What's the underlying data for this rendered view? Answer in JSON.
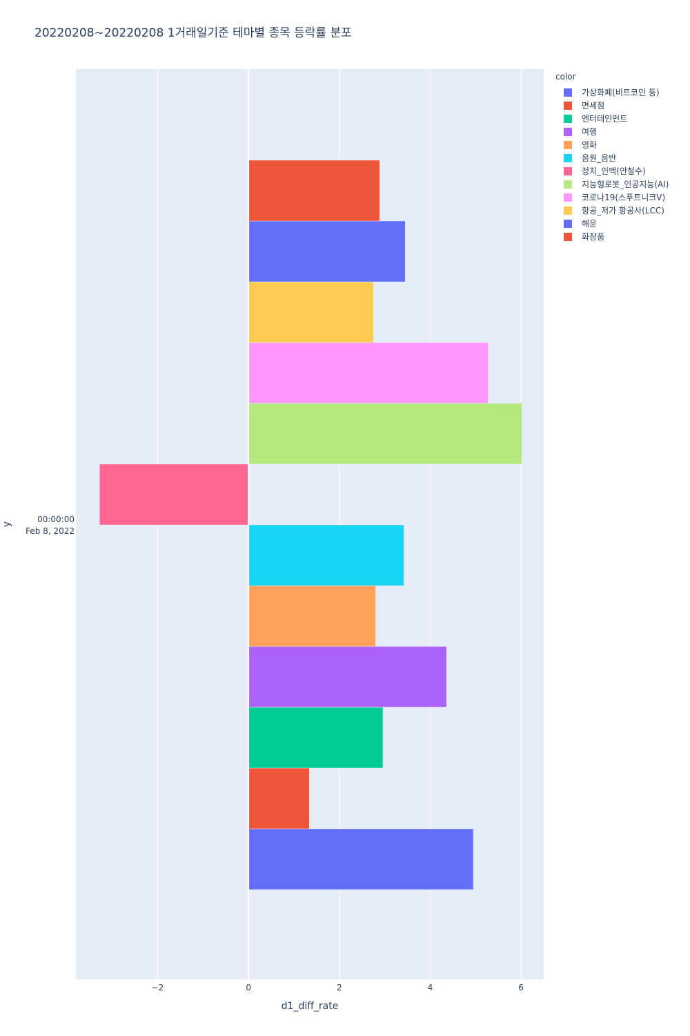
{
  "chart_data": {
    "type": "bar",
    "orientation": "horizontal",
    "title": "20220208~20220208 1거래일기준 테마별 종목 등락률 분포",
    "xlabel": "d1_diff_rate",
    "ylabel": "y",
    "y_category": [
      "00:00:00",
      "Feb 8, 2022"
    ],
    "xlim": [
      -3.8,
      6.5
    ],
    "x_ticks": [
      -2,
      0,
      2,
      4,
      6
    ],
    "x_tick_labels": [
      "−2",
      "0",
      "2",
      "4",
      "6"
    ],
    "grid": true,
    "legend_title": "color",
    "legend_position": "right",
    "series": [
      {
        "name": "가상화폐(비트코인 등)",
        "value": 4.95,
        "color": "#636efa"
      },
      {
        "name": "면세점",
        "value": 1.34,
        "color": "#ef553b"
      },
      {
        "name": "엔터테인먼트",
        "value": 2.96,
        "color": "#00cc96"
      },
      {
        "name": "여행",
        "value": 4.36,
        "color": "#ab63fa"
      },
      {
        "name": "영화",
        "value": 2.8,
        "color": "#ffa15a"
      },
      {
        "name": "음원_음반",
        "value": 3.42,
        "color": "#19d3f3"
      },
      {
        "name": "정치_인맥(안철수)",
        "value": -3.28,
        "color": "#ff6692"
      },
      {
        "name": "지능형로봇_인공지능(AI)",
        "value": 6.02,
        "color": "#b6e880"
      },
      {
        "name": "코로나19(스푸트니크V)",
        "value": 5.28,
        "color": "#ff97ff"
      },
      {
        "name": "항공_저가 항공사(LCC)",
        "value": 2.75,
        "color": "#fecb52"
      },
      {
        "name": "해운",
        "value": 3.45,
        "color": "#636efa"
      },
      {
        "name": "화장품",
        "value": 2.89,
        "color": "#ef553b"
      }
    ]
  }
}
